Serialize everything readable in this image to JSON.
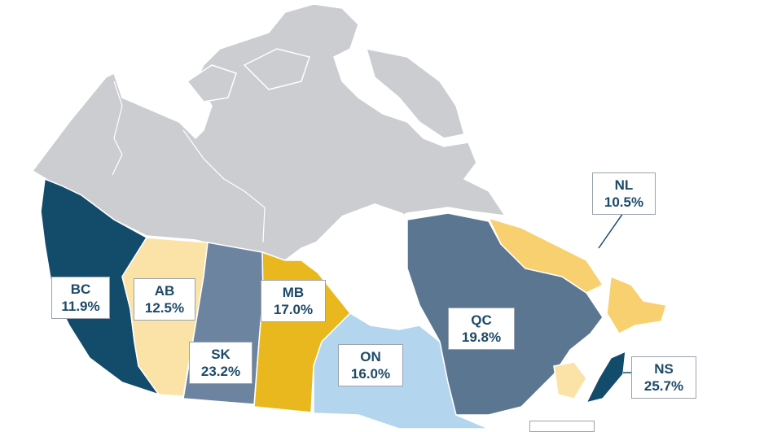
{
  "colors": {
    "north": "#cbcdd0",
    "BC": "#134b6b",
    "AB": "#fbe3a8",
    "SK": "#6d84a0",
    "MB": "#e9b81e",
    "ON": "#b3d5ee",
    "QC": "#5b7690",
    "NL": "#f8d06f",
    "NS": "#134b6b",
    "NB": "#fbe3a8",
    "water": "#ffffff",
    "border": "#ffffff",
    "label_text": "#1d4a68",
    "label_border": "#9aa3ad"
  },
  "provinces": [
    {
      "code": "BC",
      "value": "11.9%"
    },
    {
      "code": "AB",
      "value": "12.5%"
    },
    {
      "code": "SK",
      "value": "23.2%"
    },
    {
      "code": "MB",
      "value": "17.0%"
    },
    {
      "code": "ON",
      "value": "16.0%"
    },
    {
      "code": "QC",
      "value": "19.8%"
    },
    {
      "code": "NL",
      "value": "10.5%"
    },
    {
      "code": "NS",
      "value": "25.7%"
    }
  ]
}
